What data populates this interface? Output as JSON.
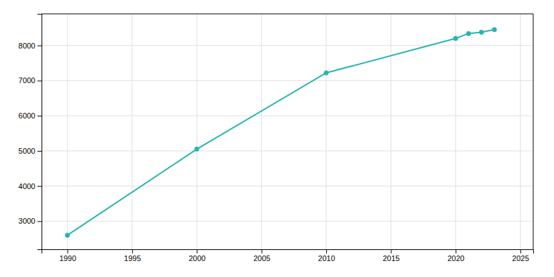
{
  "chart_data": {
    "type": "line",
    "x": [
      1990,
      2000,
      2010,
      2020,
      2021,
      2022,
      2023
    ],
    "values": [
      2600,
      5050,
      7220,
      8200,
      8340,
      8380,
      8450
    ],
    "color": "#29b5b0",
    "marker": "circle",
    "xlim": [
      1988,
      2026
    ],
    "ylim": [
      2200,
      8900
    ],
    "xticks": [
      1990,
      1995,
      2000,
      2005,
      2010,
      2015,
      2020,
      2025
    ],
    "yticks": [
      3000,
      4000,
      5000,
      6000,
      7000,
      8000
    ],
    "grid": true
  }
}
